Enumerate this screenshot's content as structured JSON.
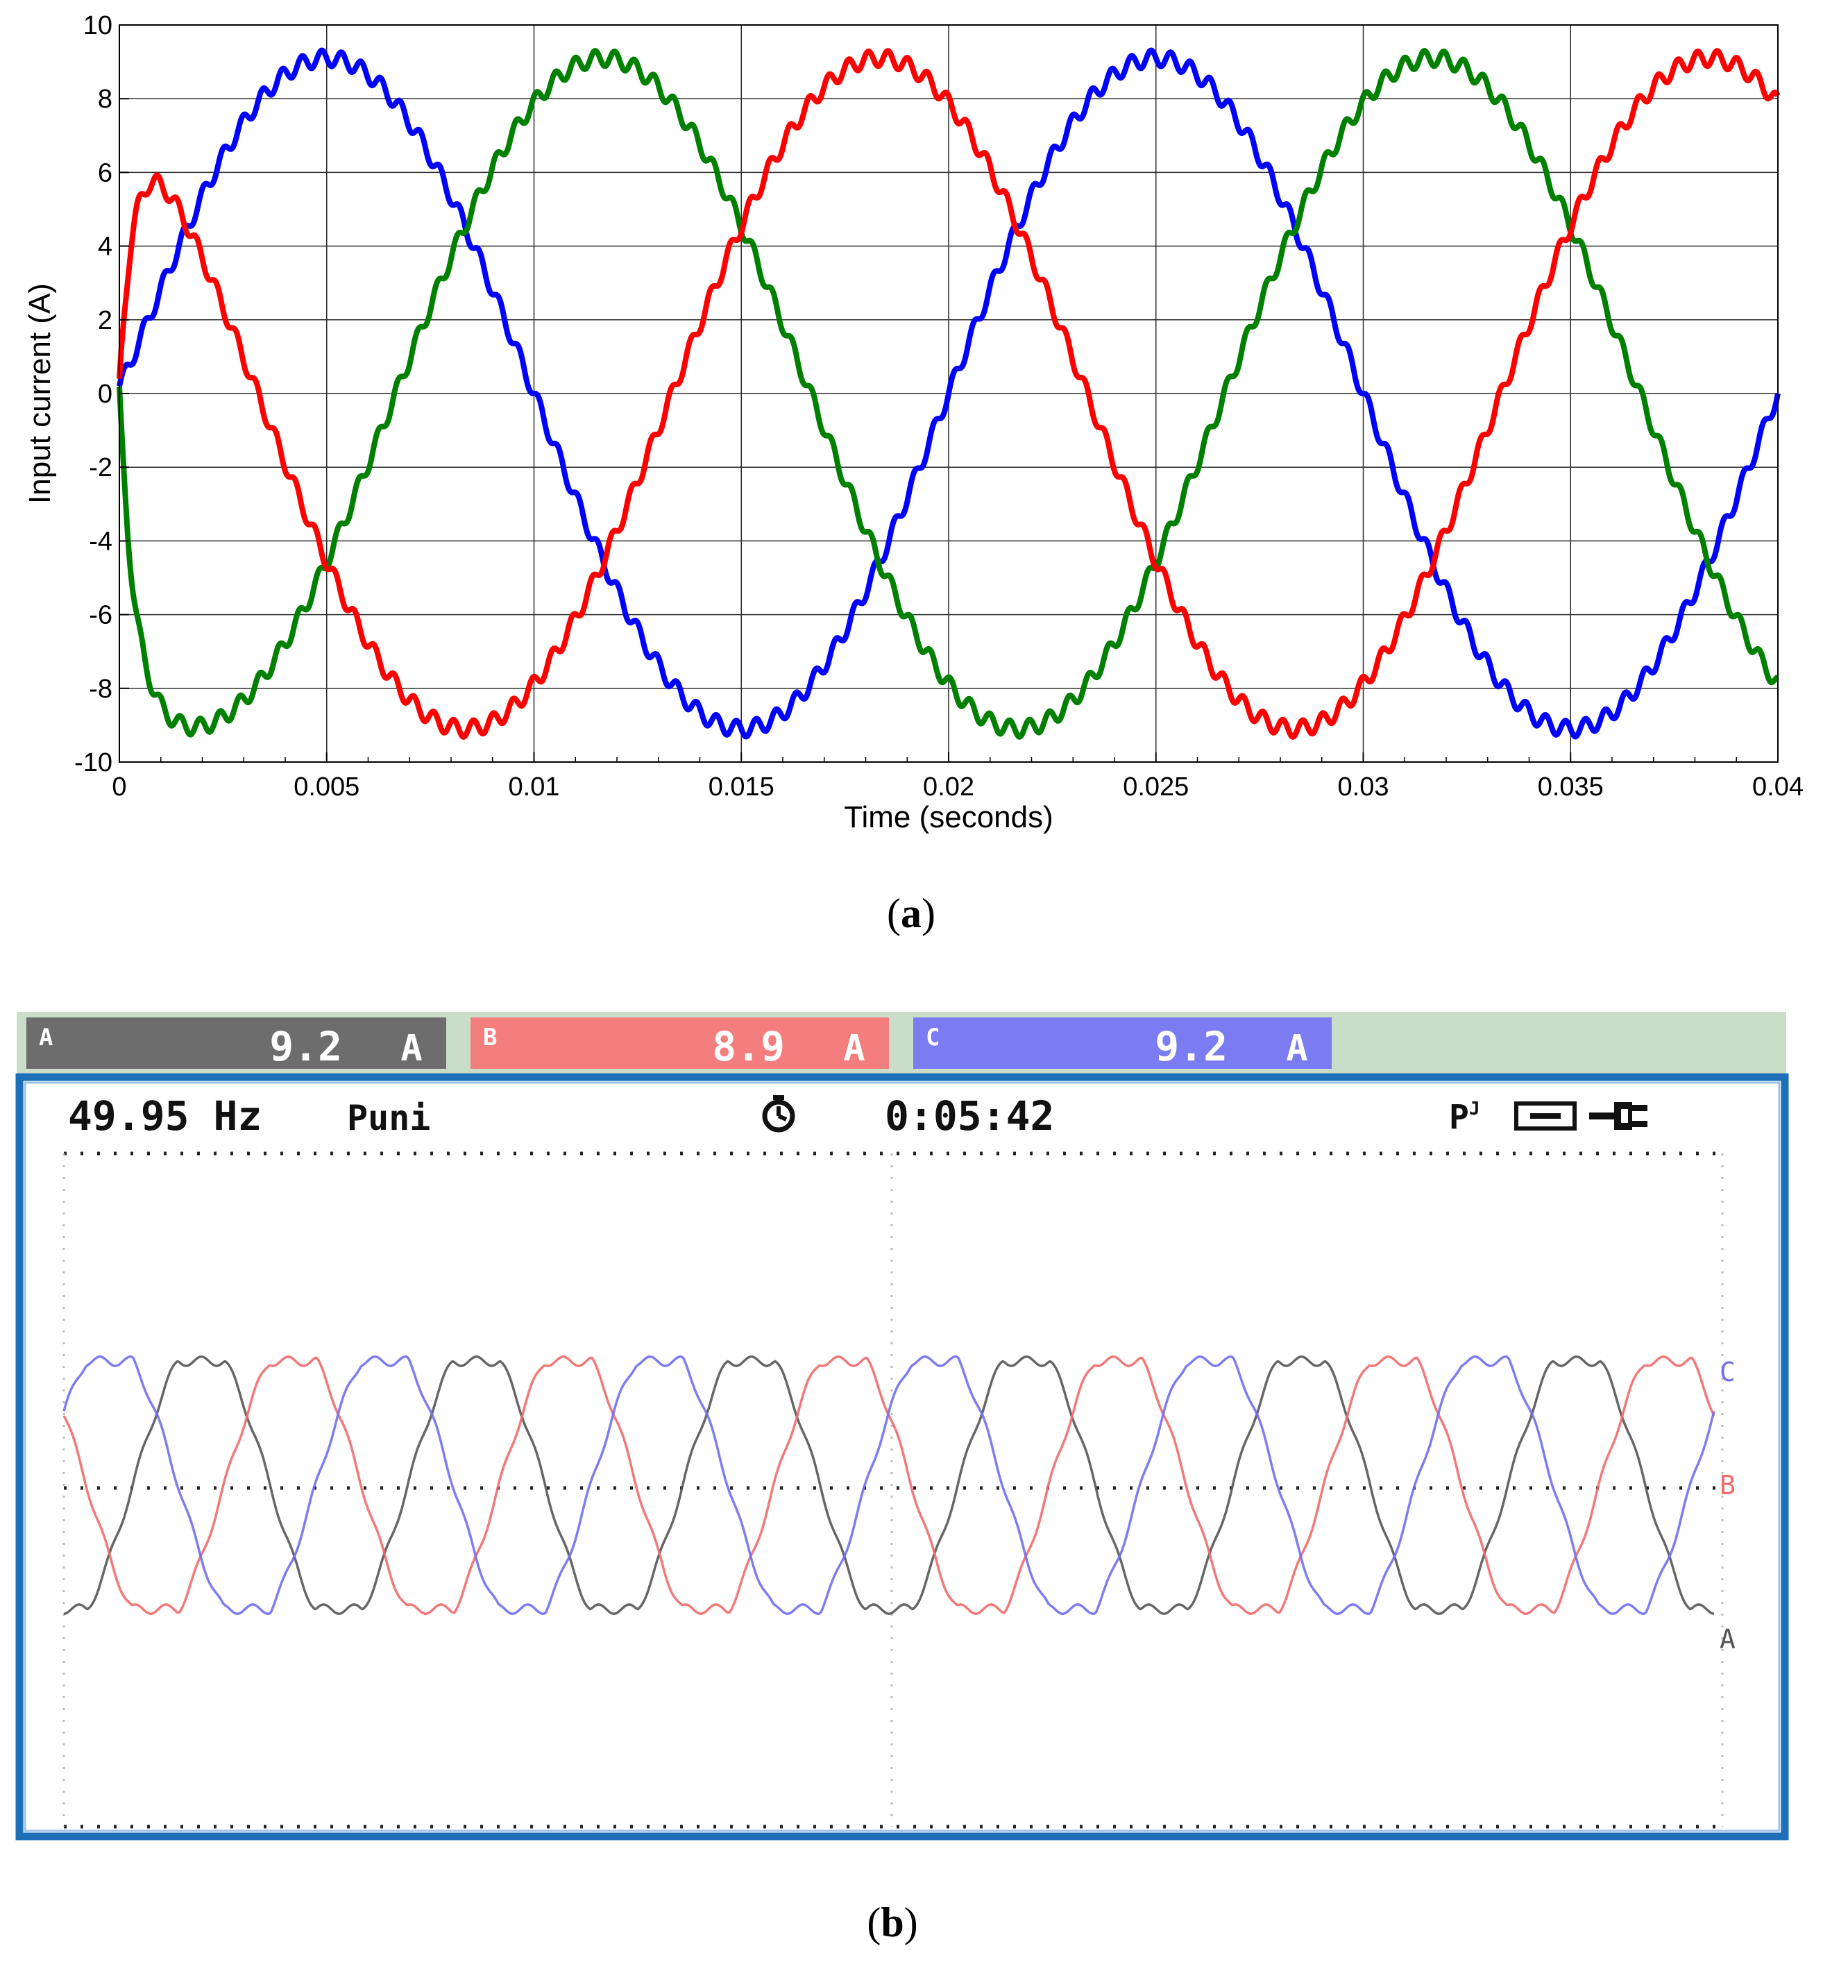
{
  "panel_a": {
    "caption": "(a)",
    "caption_letter": "a"
  },
  "panel_b": {
    "caption": "(b)",
    "caption_letter": "b",
    "header": {
      "frequency": "49.95 Hz",
      "mode_label": "Puni",
      "time": "0:05:42",
      "timer_icon": "stopwatch-icon",
      "right_icons": [
        "probe-icon",
        "battery-icon",
        "plug-icon"
      ]
    },
    "channels": [
      {
        "name": "A",
        "value": "9.2",
        "unit": "A",
        "color": "#6d6d6d"
      },
      {
        "name": "B",
        "value": "8.9",
        "unit": "A",
        "color": "#f47e7e"
      },
      {
        "name": "C",
        "value": "9.2",
        "unit": "A",
        "color": "#7b7bf2"
      }
    ],
    "trace_labels": [
      "C",
      "B",
      "A"
    ],
    "colors": {
      "frame": "#1f6fb8",
      "header_bar_bg": "#c9ddc8",
      "trace_A": "#555555",
      "trace_B": "#f06a6a",
      "trace_C": "#6f6ff0"
    }
  },
  "chart_data": [
    {
      "type": "line",
      "title": "",
      "xlabel": "Time (seconds)",
      "ylabel": "Input current (A)",
      "xlim": [
        0,
        0.04
      ],
      "ylim": [
        -10,
        10
      ],
      "xticks": [
        0,
        0.005,
        0.01,
        0.015,
        0.02,
        0.025,
        0.03,
        0.035,
        0.04
      ],
      "xtick_labels": [
        "0",
        "0.005",
        "0.01",
        "0.015",
        "0.02",
        "0.025",
        "0.03",
        "0.035",
        "0.04"
      ],
      "yticks": [
        -10,
        -8,
        -6,
        -4,
        -2,
        0,
        2,
        4,
        6,
        8,
        10
      ],
      "ytick_labels": [
        "-10",
        "-8",
        "-6",
        "-4",
        "-2",
        "0",
        "2",
        "4",
        "6",
        "8",
        "10"
      ],
      "grid": true,
      "series": [
        {
          "color": "#0000ff",
          "amplitude": 9.1,
          "frequency_hz": 50,
          "phase_deg": 0,
          "x_start": 0,
          "x_end": 0.04,
          "value_at_0": 0.2
        },
        {
          "color": "#008000",
          "amplitude": 9.1,
          "frequency_hz": 50,
          "phase_deg": -120,
          "x_start": 0,
          "x_end": 0.04,
          "value_at_0": 0
        },
        {
          "color": "#ff0000",
          "amplitude": 9.1,
          "frequency_hz": 50,
          "phase_deg": 120,
          "x_start": 0,
          "x_end": 0.04,
          "value_at_0": 0.2
        }
      ]
    },
    {
      "type": "line",
      "title": "",
      "xlabel": "",
      "ylabel": "",
      "cycles": 6,
      "series": [
        {
          "name": "A",
          "color": "#555555",
          "phase_deg": -90
        },
        {
          "name": "B",
          "color": "#f06a6a",
          "phase_deg": 150
        },
        {
          "name": "C",
          "color": "#6f6ff0",
          "phase_deg": 30
        }
      ]
    }
  ]
}
